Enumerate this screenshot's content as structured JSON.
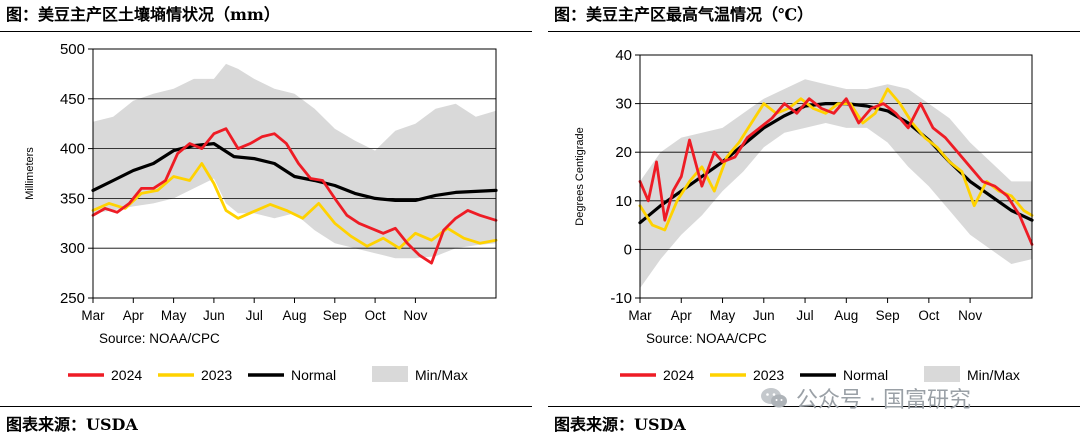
{
  "left_panel": {
    "title": "图：美豆主产区土壤墒情状况（mm）",
    "footer": "图表来源：USDA"
  },
  "right_panel": {
    "title": "图：美豆主产区最高气温情况（℃）",
    "footer": "图表来源：USDA"
  },
  "watermark": {
    "text": "公众号 · 国富研究"
  },
  "colors": {
    "s2024": "#ee1c25",
    "s2023": "#ffd200",
    "normal": "#000000",
    "minmax": "#d9d9d9",
    "grid": "#000000"
  },
  "chart_data": [
    {
      "id": "soil",
      "type": "line",
      "ylabel": "Millimeters",
      "ylim": [
        250,
        500
      ],
      "yticks": [
        250,
        300,
        350,
        400,
        450,
        500
      ],
      "xlim": [
        0,
        10
      ],
      "months": [
        {
          "label": "Mar",
          "pos": 0
        },
        {
          "label": "Apr",
          "pos": 1
        },
        {
          "label": "May",
          "pos": 2
        },
        {
          "label": "Jun",
          "pos": 3
        },
        {
          "label": "Jul",
          "pos": 4
        },
        {
          "label": "Aug",
          "pos": 5
        },
        {
          "label": "Sep",
          "pos": 6
        },
        {
          "label": "Oct",
          "pos": 7
        },
        {
          "label": "Nov",
          "pos": 8
        }
      ],
      "source": "Source: NOAA/CPC",
      "legend": [
        {
          "key": "s2024",
          "label": "2024",
          "kind": "line"
        },
        {
          "key": "s2023",
          "label": "2023",
          "kind": "line"
        },
        {
          "key": "normal",
          "label": "Normal",
          "kind": "line"
        },
        {
          "key": "minmax",
          "label": "Min/Max",
          "kind": "box"
        }
      ],
      "band": {
        "x": [
          0,
          0.5,
          1,
          1.5,
          2,
          2.5,
          3,
          3.3,
          3.6,
          4,
          4.5,
          5,
          5.5,
          6,
          6.5,
          7,
          7.5,
          8,
          8.5,
          9,
          9.5,
          10
        ],
        "max": [
          427,
          432,
          448,
          455,
          460,
          470,
          470,
          485,
          480,
          470,
          460,
          455,
          440,
          420,
          408,
          398,
          418,
          425,
          440,
          445,
          432,
          438
        ],
        "min": [
          335,
          338,
          342,
          345,
          350,
          360,
          370,
          345,
          335,
          335,
          330,
          335,
          318,
          305,
          300,
          295,
          290,
          290,
          292,
          300,
          303,
          305
        ]
      },
      "series": [
        {
          "key": "normal",
          "name": "Normal",
          "x": [
            0,
            0.5,
            1,
            1.5,
            2,
            2.5,
            3,
            3.5,
            4,
            4.5,
            5,
            5.5,
            6,
            6.5,
            7,
            7.5,
            8,
            8.5,
            9,
            9.5,
            10
          ],
          "y": [
            358,
            368,
            378,
            385,
            398,
            403,
            405,
            392,
            390,
            385,
            372,
            368,
            363,
            355,
            350,
            348,
            348,
            353,
            356,
            357,
            358
          ]
        },
        {
          "key": "s2023",
          "name": "2023",
          "x": [
            0,
            0.4,
            0.8,
            1.2,
            1.6,
            2,
            2.4,
            2.7,
            3,
            3.3,
            3.6,
            4,
            4.4,
            4.8,
            5.2,
            5.6,
            6,
            6.4,
            6.8,
            7.2,
            7.6,
            8,
            8.4,
            8.8,
            9.2,
            9.6,
            10
          ],
          "y": [
            338,
            345,
            340,
            355,
            358,
            372,
            368,
            385,
            365,
            338,
            330,
            337,
            344,
            338,
            330,
            345,
            325,
            312,
            302,
            310,
            300,
            315,
            308,
            320,
            310,
            305,
            308
          ]
        },
        {
          "key": "s2024",
          "name": "2024",
          "x": [
            0,
            0.3,
            0.6,
            0.9,
            1.2,
            1.5,
            1.8,
            2.1,
            2.4,
            2.7,
            3,
            3.3,
            3.6,
            3.9,
            4.2,
            4.5,
            4.8,
            5.1,
            5.4,
            5.7,
            6,
            6.3,
            6.6,
            6.9,
            7.2,
            7.5,
            7.8,
            8.1,
            8.4,
            8.7,
            9,
            9.3,
            9.6,
            10
          ],
          "y": [
            333,
            340,
            336,
            345,
            360,
            360,
            368,
            395,
            405,
            400,
            415,
            420,
            400,
            405,
            412,
            415,
            405,
            385,
            370,
            368,
            350,
            333,
            325,
            320,
            315,
            320,
            305,
            293,
            285,
            318,
            330,
            338,
            333,
            328
          ]
        }
      ]
    },
    {
      "id": "temp",
      "type": "line",
      "ylabel": "Degrees Centigrade",
      "ylim": [
        -10,
        40
      ],
      "yticks": [
        -10,
        0,
        10,
        20,
        30,
        40
      ],
      "xlim": [
        0,
        9.5
      ],
      "months": [
        {
          "label": "Mar",
          "pos": 0
        },
        {
          "label": "Apr",
          "pos": 1
        },
        {
          "label": "May",
          "pos": 2
        },
        {
          "label": "Jun",
          "pos": 3
        },
        {
          "label": "Jul",
          "pos": 4
        },
        {
          "label": "Aug",
          "pos": 5
        },
        {
          "label": "Sep",
          "pos": 6
        },
        {
          "label": "Oct",
          "pos": 7
        },
        {
          "label": "Nov",
          "pos": 8
        }
      ],
      "source": "Source: NOAA/CPC",
      "legend": [
        {
          "key": "s2024",
          "label": "2024",
          "kind": "line"
        },
        {
          "key": "s2023",
          "label": "2023",
          "kind": "line"
        },
        {
          "key": "normal",
          "label": "Normal",
          "kind": "line"
        },
        {
          "key": "minmax",
          "label": "Min/Max",
          "kind": "box"
        }
      ],
      "band": {
        "x": [
          0,
          0.5,
          1,
          1.5,
          2,
          2.5,
          3,
          3.5,
          4,
          4.5,
          5,
          5.5,
          6,
          6.5,
          7,
          7.5,
          8,
          8.5,
          9,
          9.5
        ],
        "max": [
          14,
          20,
          23,
          24,
          25,
          28,
          31,
          33,
          35,
          34,
          33,
          33,
          34,
          33,
          30,
          27,
          22,
          18,
          14,
          14
        ],
        "min": [
          -8,
          -2,
          3,
          7,
          12,
          16,
          21,
          24,
          25,
          26,
          25,
          25,
          22,
          17,
          13,
          8,
          3,
          0,
          -3,
          -2
        ]
      },
      "series": [
        {
          "key": "normal",
          "name": "Normal",
          "x": [
            0,
            0.5,
            1,
            1.5,
            2,
            2.5,
            3,
            3.5,
            4,
            4.5,
            5,
            5.5,
            6,
            6.5,
            7,
            7.5,
            8,
            8.5,
            9,
            9.5
          ],
          "y": [
            5.5,
            9,
            12,
            15,
            18,
            21.5,
            25,
            27.5,
            29.5,
            30,
            30,
            29.5,
            28.5,
            26,
            22.5,
            18,
            14,
            11,
            8,
            6
          ]
        },
        {
          "key": "s2023",
          "name": "2023",
          "x": [
            0,
            0.3,
            0.6,
            0.9,
            1.2,
            1.5,
            1.8,
            2.1,
            2.4,
            2.7,
            3,
            3.3,
            3.6,
            3.9,
            4.2,
            4.5,
            4.8,
            5.1,
            5.4,
            5.7,
            6,
            6.3,
            6.6,
            6.9,
            7.2,
            7.5,
            7.8,
            8.1,
            8.4,
            8.7,
            9,
            9.3,
            9.5
          ],
          "y": [
            9,
            5,
            4,
            10,
            14,
            17,
            12,
            19,
            22,
            26,
            30,
            28,
            29,
            31,
            29,
            28,
            30,
            30,
            26,
            28,
            33,
            30,
            26,
            23,
            21,
            18,
            16,
            9,
            14,
            12,
            11,
            8,
            7
          ]
        },
        {
          "key": "s2024",
          "name": "2024",
          "x": [
            0,
            0.2,
            0.4,
            0.6,
            0.8,
            1,
            1.2,
            1.5,
            1.8,
            2,
            2.3,
            2.6,
            2.9,
            3.2,
            3.5,
            3.8,
            4.1,
            4.4,
            4.7,
            5,
            5.3,
            5.6,
            5.9,
            6.2,
            6.5,
            6.8,
            7.1,
            7.4,
            7.7,
            8,
            8.3,
            8.6,
            8.9,
            9.2,
            9.5
          ],
          "y": [
            14,
            10,
            18,
            6,
            12,
            15,
            22.5,
            13,
            20,
            18,
            19,
            23,
            25,
            27,
            30,
            28,
            31,
            29,
            28,
            31,
            26,
            29,
            30,
            28,
            25,
            30,
            25,
            23,
            20,
            17,
            14,
            13,
            11,
            7,
            1
          ]
        }
      ]
    }
  ]
}
